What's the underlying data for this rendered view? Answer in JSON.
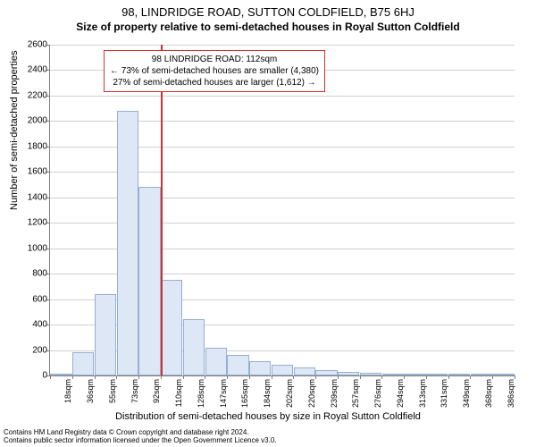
{
  "title": "98, LINDRIDGE ROAD, SUTTON COLDFIELD, B75 6HJ",
  "subtitle": "Size of property relative to semi-detached houses in Royal Sutton Coldfield",
  "ylabel": "Number of semi-detached properties",
  "xlabel": "Distribution of semi-detached houses by size in Royal Sutton Coldfield",
  "chart": {
    "type": "histogram",
    "ylim": [
      0,
      2600
    ],
    "ytick_step": 200,
    "background_color": "#ffffff",
    "grid_color": "#d0d0d0",
    "axis_color": "#808080",
    "bar_fill": "#dde7f5",
    "bar_border": "#98aed0",
    "ref_line_color": "#d43030",
    "ref_line_x_index": 5,
    "bar_count": 21,
    "xticks": [
      "18sqm",
      "36sqm",
      "55sqm",
      "73sqm",
      "92sqm",
      "110sqm",
      "128sqm",
      "147sqm",
      "165sqm",
      "184sqm",
      "202sqm",
      "220sqm",
      "239sqm",
      "257sqm",
      "276sqm",
      "294sqm",
      "313sqm",
      "331sqm",
      "349sqm",
      "368sqm",
      "386sqm"
    ],
    "values": [
      10,
      180,
      640,
      2080,
      1480,
      750,
      440,
      220,
      160,
      115,
      85,
      60,
      40,
      30,
      20,
      14,
      10,
      7,
      5,
      3,
      2
    ]
  },
  "annotation": {
    "line1": "98 LINDRIDGE ROAD: 112sqm",
    "line2": "← 73% of semi-detached houses are smaller (4,380)",
    "line3": "27% of semi-detached houses are larger (1,612) →"
  },
  "footer": {
    "line1": "Contains HM Land Registry data © Crown copyright and database right 2024.",
    "line2": "Contains public sector information licensed under the Open Government Licence v3.0."
  }
}
